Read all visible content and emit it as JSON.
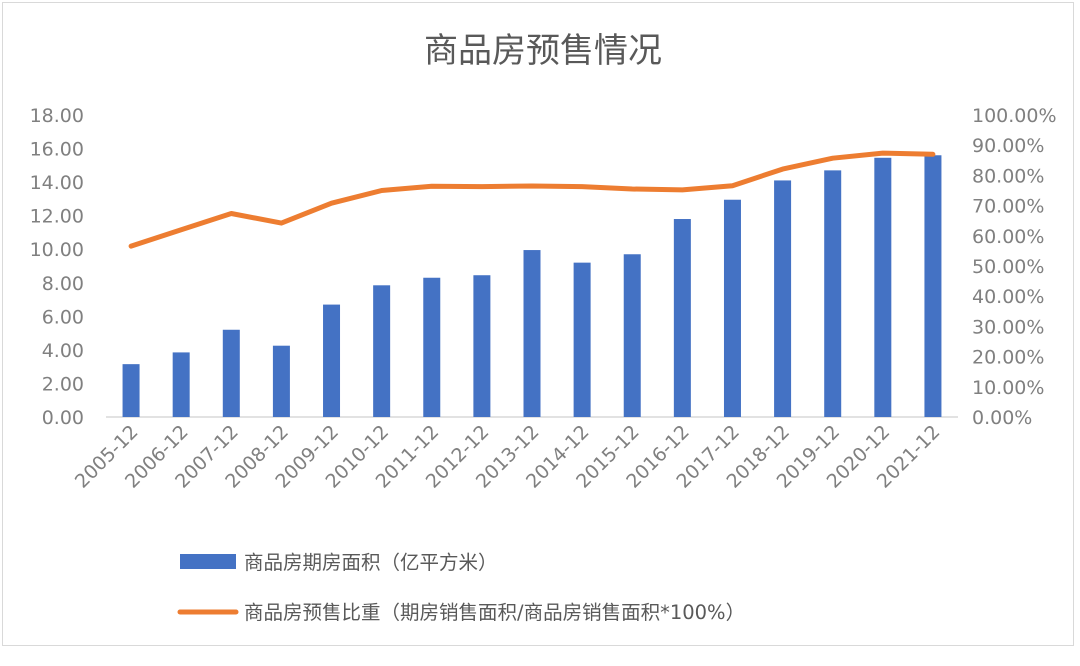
{
  "chart_data": {
    "type": "bar+line",
    "title": "商品房预售情况",
    "categories": [
      "2005-12",
      "2006-12",
      "2007-12",
      "2008-12",
      "2009-12",
      "2010-12",
      "2011-12",
      "2012-12",
      "2013-12",
      "2014-12",
      "2015-12",
      "2016-12",
      "2017-12",
      "2018-12",
      "2019-12",
      "2020-12",
      "2021-12"
    ],
    "series": [
      {
        "name": "商品房期房面积（亿平方米）",
        "type": "bar",
        "axis": "left",
        "color": "#4472c4",
        "values": [
          3.15,
          3.85,
          5.2,
          4.25,
          6.7,
          7.85,
          8.3,
          8.45,
          9.95,
          9.2,
          9.7,
          11.8,
          12.95,
          14.1,
          14.7,
          15.45,
          15.6
        ]
      },
      {
        "name": "商品房预售比重（期房销售面积/商品房销售面积*100%）",
        "type": "line",
        "axis": "right",
        "color": "#ed7d31",
        "values": [
          56.6,
          62.0,
          67.4,
          64.2,
          70.8,
          75.0,
          76.4,
          76.3,
          76.5,
          76.3,
          75.5,
          75.2,
          76.6,
          82.1,
          85.7,
          87.4,
          87.0
        ]
      }
    ],
    "y_left": {
      "ylim": [
        0,
        18
      ],
      "ticks": [
        "0.00",
        "2.00",
        "4.00",
        "6.00",
        "8.00",
        "10.00",
        "12.00",
        "14.00",
        "16.00",
        "18.00"
      ]
    },
    "y_right": {
      "ylim": [
        0,
        100
      ],
      "ticks": [
        "0.00%",
        "10.00%",
        "20.00%",
        "30.00%",
        "40.00%",
        "50.00%",
        "60.00%",
        "70.00%",
        "80.00%",
        "90.00%",
        "100.00%"
      ]
    },
    "grid": false,
    "legend_position": "bottom-left"
  }
}
